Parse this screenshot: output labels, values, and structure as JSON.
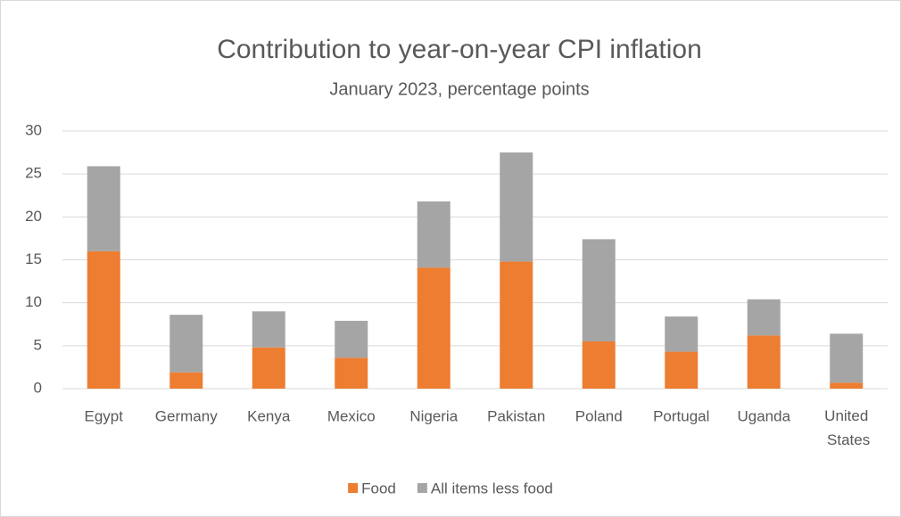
{
  "chart_data": {
    "type": "stacked_bar",
    "title": "Contribution to year-on-year CPI inflation",
    "subtitle": "January 2023, percentage points",
    "categories": [
      "Egypt",
      "Germany",
      "Kenya",
      "Mexico",
      "Nigeria",
      "Pakistan",
      "Poland",
      "Portugal",
      "Uganda",
      "United States"
    ],
    "series": [
      {
        "name": "Food",
        "color": "#ed7d31",
        "values": [
          16.0,
          1.9,
          4.8,
          3.6,
          14.1,
          14.8,
          5.5,
          4.3,
          6.2,
          0.7
        ]
      },
      {
        "name": "All items less food",
        "color": "#a5a5a5",
        "values": [
          9.9,
          6.7,
          4.2,
          4.3,
          7.7,
          12.7,
          11.9,
          4.1,
          4.2,
          5.7
        ]
      }
    ],
    "ylim": [
      0,
      30
    ],
    "yticks": [
      0,
      5,
      10,
      15,
      20,
      25,
      30
    ],
    "grid": true,
    "legend": "bottom"
  }
}
